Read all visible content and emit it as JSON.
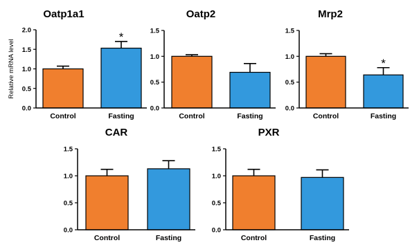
{
  "chart_data": [
    {
      "type": "bar",
      "title": "Oatp1a1",
      "ylabel": "Relative mRNA level",
      "categories": [
        "Control",
        "Fasting"
      ],
      "values": [
        1.0,
        1.53
      ],
      "errors": [
        0.07,
        0.17
      ],
      "significance": [
        "",
        "*"
      ],
      "yticks": [
        "0.0",
        "0.5",
        "1.0",
        "1.5",
        "2.0"
      ],
      "ylim": [
        0,
        2.0
      ],
      "colors": [
        "#f07f2e",
        "#3399dd"
      ]
    },
    {
      "type": "bar",
      "title": "Oatp2",
      "ylabel": "",
      "categories": [
        "Control",
        "Fasting"
      ],
      "values": [
        1.0,
        0.69
      ],
      "errors": [
        0.03,
        0.17
      ],
      "significance": [
        "",
        ""
      ],
      "yticks": [
        "0.0",
        "0.5",
        "1.0",
        "1.5"
      ],
      "ylim": [
        0,
        1.5
      ],
      "colors": [
        "#f07f2e",
        "#3399dd"
      ]
    },
    {
      "type": "bar",
      "title": "Mrp2",
      "ylabel": "",
      "categories": [
        "Control",
        "Fasting"
      ],
      "values": [
        1.0,
        0.64
      ],
      "errors": [
        0.05,
        0.14
      ],
      "significance": [
        "",
        "*"
      ],
      "yticks": [
        "0.0",
        "0.5",
        "1.0",
        "1.5"
      ],
      "ylim": [
        0,
        1.5
      ],
      "colors": [
        "#f07f2e",
        "#3399dd"
      ]
    },
    {
      "type": "bar",
      "title": "CAR",
      "ylabel": "",
      "categories": [
        "Control",
        "Fasting"
      ],
      "values": [
        1.0,
        1.13
      ],
      "errors": [
        0.12,
        0.15
      ],
      "significance": [
        "",
        ""
      ],
      "yticks": [
        "0.0",
        "0.5",
        "1.0",
        "1.5"
      ],
      "ylim": [
        0,
        1.5
      ],
      "colors": [
        "#f07f2e",
        "#3399dd"
      ]
    },
    {
      "type": "bar",
      "title": "PXR",
      "ylabel": "",
      "categories": [
        "Control",
        "Fasting"
      ],
      "values": [
        1.0,
        0.97
      ],
      "errors": [
        0.12,
        0.14
      ],
      "significance": [
        "",
        ""
      ],
      "yticks": [
        "0.0",
        "0.5",
        "1.0",
        "1.5"
      ],
      "ylim": [
        0,
        1.5
      ],
      "colors": [
        "#f07f2e",
        "#3399dd"
      ]
    }
  ]
}
